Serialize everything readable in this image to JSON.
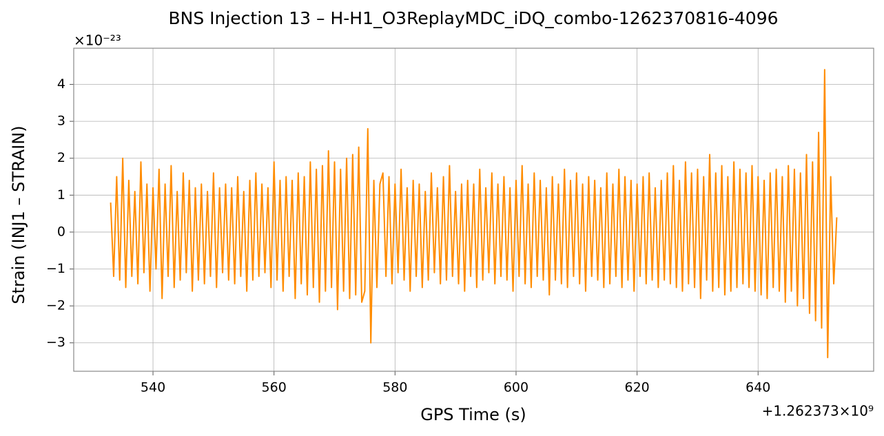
{
  "chart_data": {
    "type": "line",
    "title": "BNS Injection 13 – H-H1_O3ReplayMDC_iDQ_combo-1262370816-4096",
    "x_label": "GPS Time (s)",
    "y_label": "Strain (INJ1 – STRAIN)",
    "x_offset_text": "+1.262373×10⁹",
    "y_offset_text": "×10⁻²³",
    "grid": true,
    "xlim": [
      526.9,
      659.1
    ],
    "ylim": [
      -3.77,
      4.98
    ],
    "xticks": [
      540,
      560,
      580,
      600,
      620,
      640
    ],
    "yticks": [
      {
        "value": -3,
        "label": "−3"
      },
      {
        "value": -2,
        "label": "−2"
      },
      {
        "value": -1,
        "label": "−1"
      },
      0,
      1,
      2,
      3,
      4
    ],
    "series": [
      {
        "color": "#ff8c00",
        "x": [
          533,
          533.5,
          534,
          534.5,
          535,
          535.5,
          536,
          536.5,
          537,
          537.5,
          538,
          538.5,
          539,
          539.5,
          540,
          540.5,
          541,
          541.5,
          542,
          542.5,
          543,
          543.5,
          544,
          544.5,
          545,
          545.5,
          546,
          546.5,
          547,
          547.5,
          548,
          548.5,
          549,
          549.5,
          550,
          550.5,
          551,
          551.5,
          552,
          552.5,
          553,
          553.5,
          554,
          554.5,
          555,
          555.5,
          556,
          556.5,
          557,
          557.5,
          558,
          558.5,
          559,
          559.5,
          560,
          560.5,
          561,
          561.5,
          562,
          562.5,
          563,
          563.5,
          564,
          564.5,
          565,
          565.5,
          566,
          566.5,
          567,
          567.5,
          568,
          568.5,
          569,
          569.5,
          570,
          570.5,
          571,
          571.5,
          572,
          572.5,
          573,
          573.5,
          574,
          574.5,
          575,
          575.5,
          576,
          576.5,
          577,
          577.5,
          578,
          578.5,
          579,
          579.5,
          580,
          580.5,
          581,
          581.5,
          582,
          582.5,
          583,
          583.5,
          584,
          584.5,
          585,
          585.5,
          586,
          586.5,
          587,
          587.5,
          588,
          588.5,
          589,
          589.5,
          590,
          590.5,
          591,
          591.5,
          592,
          592.5,
          593,
          593.5,
          594,
          594.5,
          595,
          595.5,
          596,
          596.5,
          597,
          597.5,
          598,
          598.5,
          599,
          599.5,
          600,
          600.5,
          601,
          601.5,
          602,
          602.5,
          603,
          603.5,
          604,
          604.5,
          605,
          605.5,
          606,
          606.5,
          607,
          607.5,
          608,
          608.5,
          609,
          609.5,
          610,
          610.5,
          611,
          611.5,
          612,
          612.5,
          613,
          613.5,
          614,
          614.5,
          615,
          615.5,
          616,
          616.5,
          617,
          617.5,
          618,
          618.5,
          619,
          619.5,
          620,
          620.5,
          621,
          621.5,
          622,
          622.5,
          623,
          623.5,
          624,
          624.5,
          625,
          625.5,
          626,
          626.5,
          627,
          627.5,
          628,
          628.5,
          629,
          629.5,
          630,
          630.5,
          631,
          631.5,
          632,
          632.5,
          633,
          633.5,
          634,
          634.5,
          635,
          635.5,
          636,
          636.5,
          637,
          637.5,
          638,
          638.5,
          639,
          639.5,
          640,
          640.5,
          641,
          641.5,
          642,
          642.5,
          643,
          643.5,
          644,
          644.5,
          645,
          645.5,
          646,
          646.5,
          647,
          647.5,
          648,
          648.5,
          649,
          649.5,
          650,
          650.5,
          651,
          651.5,
          652,
          652.5,
          653
        ],
        "values": [
          0.8,
          -1.2,
          1.5,
          -1.3,
          2.0,
          -1.5,
          1.4,
          -1.2,
          1.1,
          -1.4,
          1.9,
          -1.1,
          1.3,
          -1.6,
          1.2,
          -1.0,
          1.7,
          -1.8,
          1.3,
          -1.2,
          1.8,
          -1.5,
          1.1,
          -1.3,
          1.6,
          -1.1,
          1.4,
          -1.6,
          1.2,
          -1.3,
          1.3,
          -1.4,
          1.1,
          -1.2,
          1.6,
          -1.5,
          1.2,
          -1.1,
          1.3,
          -1.3,
          1.2,
          -1.4,
          1.5,
          -1.2,
          1.1,
          -1.6,
          1.4,
          -1.3,
          1.6,
          -1.2,
          1.3,
          -1.1,
          1.2,
          -1.5,
          1.9,
          -1.3,
          1.4,
          -1.6,
          1.5,
          -1.2,
          1.4,
          -1.8,
          1.6,
          -1.4,
          1.5,
          -1.7,
          1.9,
          -1.5,
          1.7,
          -1.9,
          1.8,
          -1.6,
          2.2,
          -1.5,
          1.9,
          -2.1,
          1.7,
          -1.6,
          2.0,
          -1.8,
          2.1,
          -1.7,
          2.3,
          -1.9,
          -1.6,
          2.8,
          -3.0,
          1.4,
          -1.5,
          1.3,
          1.6,
          -1.2,
          1.5,
          -1.4,
          1.3,
          -1.1,
          1.7,
          -1.3,
          1.2,
          -1.6,
          1.4,
          -1.2,
          1.3,
          -1.5,
          1.1,
          -1.3,
          1.6,
          -1.1,
          1.2,
          -1.4,
          1.5,
          -1.3,
          1.8,
          -1.2,
          1.1,
          -1.4,
          1.3,
          -1.6,
          1.4,
          -1.2,
          1.3,
          -1.5,
          1.7,
          -1.3,
          1.2,
          -1.1,
          1.6,
          -1.4,
          1.3,
          -1.2,
          1.5,
          -1.3,
          1.2,
          -1.6,
          1.4,
          -1.2,
          1.8,
          -1.4,
          1.3,
          -1.5,
          1.6,
          -1.2,
          1.4,
          -1.3,
          1.2,
          -1.7,
          1.5,
          -1.3,
          1.3,
          -1.4,
          1.7,
          -1.5,
          1.4,
          -1.2,
          1.6,
          -1.4,
          1.3,
          -1.6,
          1.5,
          -1.2,
          1.4,
          -1.3,
          1.2,
          -1.5,
          1.6,
          -1.4,
          1.3,
          -1.2,
          1.7,
          -1.5,
          1.5,
          -1.3,
          1.4,
          -1.6,
          1.3,
          -1.2,
          1.5,
          -1.4,
          1.6,
          -1.3,
          1.2,
          -1.5,
          1.4,
          -1.3,
          1.6,
          -1.4,
          1.8,
          -1.5,
          1.4,
          -1.6,
          1.9,
          -1.4,
          1.6,
          -1.5,
          1.7,
          -1.8,
          1.5,
          -1.3,
          2.1,
          -1.6,
          1.6,
          -1.5,
          1.8,
          -1.7,
          1.5,
          -1.6,
          1.9,
          -1.5,
          1.7,
          -1.4,
          1.6,
          -1.5,
          1.8,
          -1.6,
          1.5,
          -1.7,
          1.4,
          -1.8,
          1.6,
          -1.5,
          1.7,
          -1.6,
          1.5,
          -1.9,
          1.8,
          -1.6,
          1.7,
          -2.0,
          1.6,
          -1.8,
          2.1,
          -2.2,
          1.9,
          -2.4,
          2.7,
          -2.6,
          4.4,
          -3.4,
          1.5,
          -1.4,
          0.4
        ]
      }
    ]
  }
}
